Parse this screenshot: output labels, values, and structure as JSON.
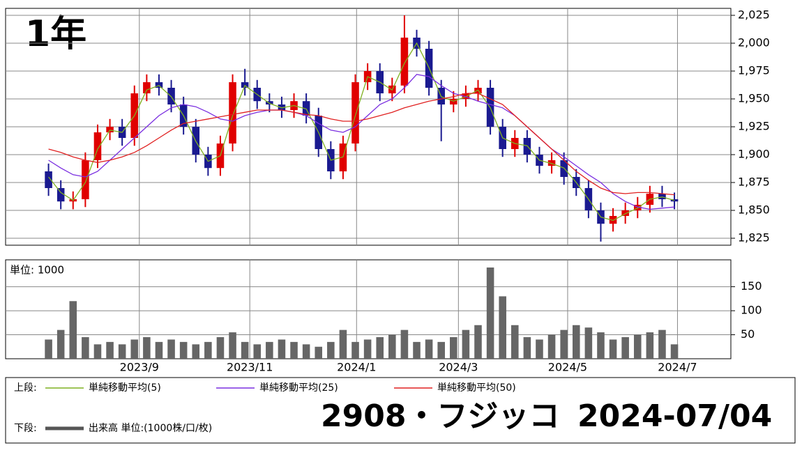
{
  "period_label": "1年",
  "legend": {
    "upper_label": "上段:",
    "lower_label": "下段:"
  },
  "title": "2908・フジッコ",
  "date": "2024-07/04",
  "chart_data": [
    {
      "type": "candlestick",
      "up_color": "#e00000",
      "down_color": "#1a1a90",
      "xlim": [
        -3.5,
        55.6
      ],
      "ylim": [
        1818.75,
        2031.25
      ],
      "grid": true,
      "yticks": [
        {
          "value": 1825,
          "label": "1,825"
        },
        {
          "value": 1850,
          "label": "1,850"
        },
        {
          "value": 1875,
          "label": "1,875"
        },
        {
          "value": 1900,
          "label": "1,900"
        },
        {
          "value": 1925,
          "label": "1,925"
        },
        {
          "value": 1950,
          "label": "1,950"
        },
        {
          "value": 1975,
          "label": "1,975"
        },
        {
          "value": 2000,
          "label": "2,000"
        },
        {
          "value": 2025,
          "label": "2,025"
        }
      ],
      "open": [
        1885,
        1870,
        1858,
        1860,
        1895,
        1920,
        1925,
        1915,
        1955,
        1965,
        1960,
        1945,
        1925,
        1900,
        1888,
        1910,
        1965,
        1960,
        1948,
        1945,
        1940,
        1948,
        1935,
        1905,
        1885,
        1910,
        1965,
        1975,
        1955,
        1962,
        2005,
        1995,
        1960,
        1945,
        1950,
        1955,
        1960,
        1925,
        1905,
        1915,
        1900,
        1890,
        1895,
        1880,
        1870,
        1850,
        1838,
        1845,
        1850,
        1855,
        1865,
        1860
      ],
      "high": [
        1892,
        1877,
        1867,
        1902,
        1927,
        1932,
        1932,
        1962,
        1972,
        1972,
        1967,
        1952,
        1932,
        1907,
        1917,
        1972,
        1977,
        1967,
        1955,
        1952,
        1955,
        1955,
        1942,
        1912,
        1917,
        1972,
        1982,
        1982,
        1969,
        2025,
        2012,
        2002,
        1967,
        1957,
        1962,
        1967,
        1967,
        1932,
        1922,
        1922,
        1907,
        1902,
        1902,
        1887,
        1877,
        1857,
        1852,
        1857,
        1862,
        1872,
        1872,
        1866
      ],
      "low": [
        1863,
        1851,
        1851,
        1853,
        1888,
        1913,
        1908,
        1908,
        1948,
        1953,
        1938,
        1918,
        1893,
        1881,
        1881,
        1903,
        1953,
        1941,
        1938,
        1933,
        1933,
        1928,
        1898,
        1878,
        1878,
        1903,
        1958,
        1948,
        1948,
        1955,
        1988,
        1953,
        1912,
        1938,
        1943,
        1948,
        1918,
        1898,
        1898,
        1893,
        1883,
        1883,
        1873,
        1863,
        1843,
        1822,
        1831,
        1838,
        1843,
        1848,
        1853,
        1851
      ],
      "close": [
        1870,
        1858,
        1860,
        1895,
        1920,
        1925,
        1915,
        1955,
        1965,
        1960,
        1945,
        1925,
        1900,
        1888,
        1910,
        1965,
        1960,
        1948,
        1945,
        1940,
        1948,
        1935,
        1905,
        1885,
        1910,
        1965,
        1975,
        1955,
        1962,
        2005,
        1995,
        1960,
        1945,
        1950,
        1955,
        1960,
        1925,
        1905,
        1915,
        1900,
        1890,
        1895,
        1880,
        1870,
        1850,
        1838,
        1845,
        1850,
        1855,
        1865,
        1860,
        1858
      ],
      "series": [
        {
          "name": "単純移動平均(5)",
          "color": "#7fb020",
          "values": [
            1880,
            1866,
            1859,
            1875,
            1905,
            1922,
            1920,
            1935,
            1958,
            1962,
            1952,
            1935,
            1912,
            1894,
            1899,
            1935,
            1962,
            1954,
            1946,
            1942,
            1944,
            1941,
            1920,
            1895,
            1898,
            1935,
            1970,
            1965,
            1958,
            1982,
            2000,
            1978,
            1952,
            1948,
            1952,
            1958,
            1942,
            1915,
            1910,
            1908,
            1895,
            1892,
            1888,
            1875,
            1860,
            1844,
            1841,
            1847,
            1852,
            1860,
            1862,
            1859
          ]
        },
        {
          "name": "単純移動平均(25)",
          "color": "#7a2ee0",
          "values": [
            1895,
            1888,
            1882,
            1880,
            1885,
            1895,
            1905,
            1915,
            1925,
            1935,
            1942,
            1945,
            1943,
            1938,
            1932,
            1930,
            1935,
            1938,
            1940,
            1940,
            1938,
            1935,
            1928,
            1922,
            1920,
            1925,
            1935,
            1945,
            1950,
            1960,
            1972,
            1970,
            1962,
            1955,
            1952,
            1948,
            1945,
            1942,
            1935,
            1925,
            1915,
            1905,
            1898,
            1890,
            1882,
            1875,
            1865,
            1858,
            1853,
            1851,
            1852,
            1853
          ]
        },
        {
          "name": "単純移動平均(50)",
          "color": "#e02020",
          "values": [
            1905,
            1902,
            1898,
            1895,
            1893,
            1895,
            1898,
            1902,
            1908,
            1915,
            1922,
            1928,
            1930,
            1932,
            1934,
            1936,
            1938,
            1940,
            1940,
            1940,
            1938,
            1936,
            1935,
            1932,
            1930,
            1930,
            1932,
            1935,
            1938,
            1942,
            1945,
            1948,
            1950,
            1952,
            1955,
            1955,
            1950,
            1945,
            1935,
            1925,
            1915,
            1905,
            1895,
            1885,
            1877,
            1870,
            1866,
            1865,
            1866,
            1866,
            1865,
            1864
          ]
        }
      ]
    },
    {
      "type": "bar",
      "unit_label": "単位: 1000",
      "color": "#666666",
      "xlim": [
        -3.5,
        55.6
      ],
      "ylim": [
        0,
        206
      ],
      "yticks": [
        50,
        100,
        150
      ],
      "grid": true,
      "xticks": [
        {
          "value": 7.4,
          "label": "2023/9"
        },
        {
          "value": 16.4,
          "label": "2023/11"
        },
        {
          "value": 25.1,
          "label": "2024/1"
        },
        {
          "value": 33.4,
          "label": "2024/3"
        },
        {
          "value": 42.3,
          "label": "2024/5"
        },
        {
          "value": 51.25,
          "label": "2024/7"
        }
      ],
      "series": [
        {
          "name": "出来高 単位:(1000株/口/枚)",
          "color": "#555555",
          "values": [
            40,
            60,
            120,
            45,
            30,
            35,
            30,
            40,
            45,
            35,
            40,
            35,
            30,
            35,
            45,
            55,
            35,
            30,
            35,
            40,
            35,
            30,
            25,
            35,
            60,
            35,
            40,
            45,
            50,
            60,
            35,
            40,
            35,
            45,
            60,
            70,
            190,
            130,
            70,
            45,
            40,
            50,
            60,
            70,
            65,
            55,
            40,
            45,
            50,
            55,
            60,
            30
          ]
        }
      ]
    }
  ]
}
